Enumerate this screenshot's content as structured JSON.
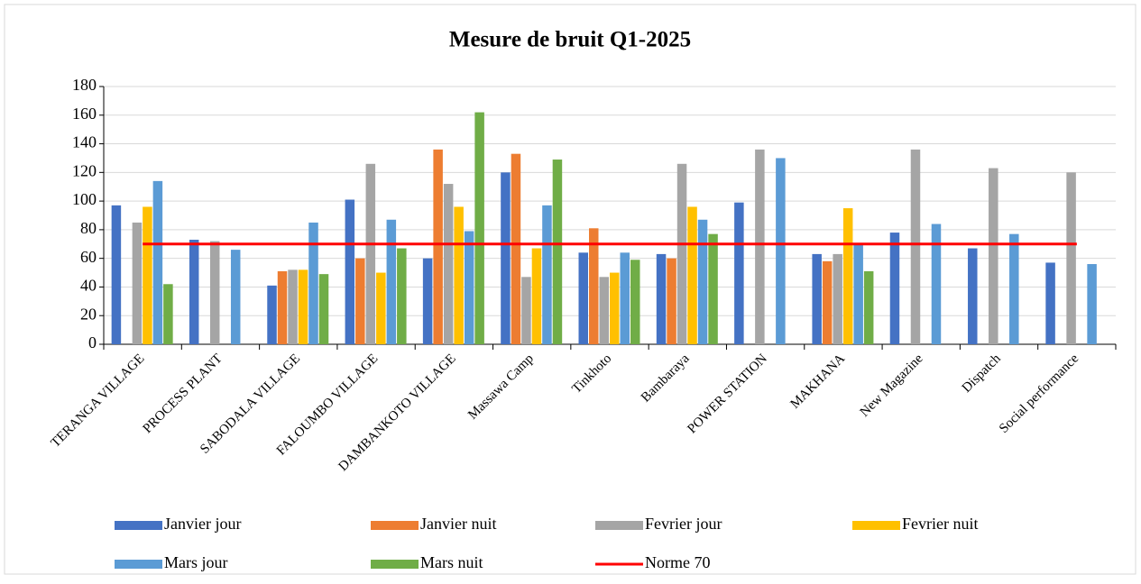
{
  "chart_data": {
    "type": "bar",
    "title": "Mesure de bruit Q1-2025",
    "categories": [
      "TERANGA VILLAGE",
      "PROCESS PLANT",
      "SABODALA VILLAGE",
      "FALOUMBO VILLAGE",
      "DAMBANKOTO VILLAGE",
      "Massawa Camp",
      "Tinkhoto",
      "Bambaraya",
      "POWER STATION",
      "MAKHANA",
      "New Magazine",
      "Dispatch",
      "Social performance"
    ],
    "series": [
      {
        "name": "Janvier jour",
        "color": "#4472c4",
        "values": [
          97,
          73,
          41,
          101,
          60,
          120,
          64,
          63,
          99,
          63,
          78,
          67,
          57
        ]
      },
      {
        "name": "Janvier nuit",
        "color": "#ed7d31",
        "values": [
          null,
          null,
          51,
          60,
          136,
          133,
          81,
          60,
          null,
          58,
          null,
          null,
          null
        ]
      },
      {
        "name": "Fevrier jour",
        "color": "#a5a5a5",
        "values": [
          85,
          72,
          52,
          126,
          112,
          47,
          47,
          126,
          136,
          63,
          136,
          123,
          120
        ]
      },
      {
        "name": "Fevrier nuit",
        "color": "#ffc000",
        "values": [
          96,
          null,
          52,
          50,
          96,
          67,
          50,
          96,
          null,
          95,
          null,
          null,
          null
        ]
      },
      {
        "name": "Mars jour",
        "color": "#5b9bd5",
        "values": [
          114,
          66,
          85,
          87,
          79,
          97,
          64,
          87,
          130,
          70,
          84,
          77,
          56
        ]
      },
      {
        "name": "Mars nuit",
        "color": "#70ad47",
        "values": [
          42,
          null,
          49,
          67,
          162,
          129,
          59,
          77,
          null,
          51,
          null,
          null,
          null
        ]
      },
      {
        "name": "Norme 70",
        "type": "line",
        "color": "#ff0000",
        "values": [
          70,
          70,
          70,
          70,
          70,
          70,
          70,
          70,
          70,
          70,
          70,
          70,
          70
        ]
      }
    ],
    "ylim": [
      0,
      180
    ],
    "yticks": [
      0,
      20,
      40,
      60,
      80,
      100,
      120,
      140,
      160,
      180
    ],
    "grid": true
  }
}
